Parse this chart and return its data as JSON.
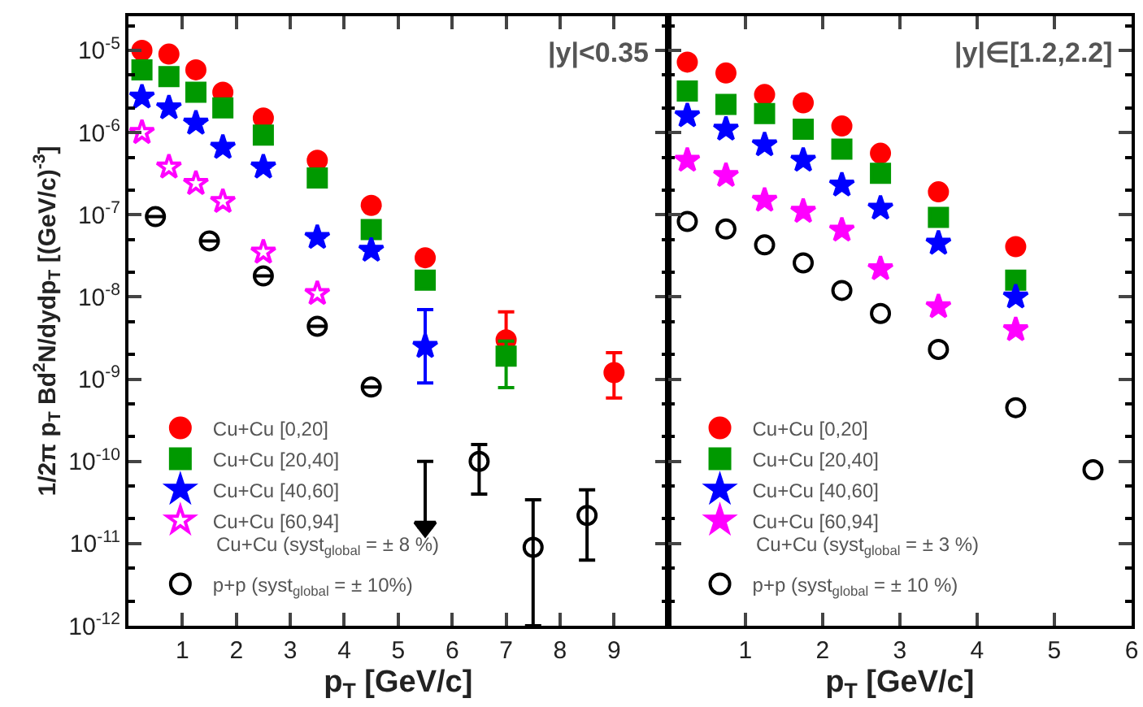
{
  "chart_data": [
    {
      "type": "scatter",
      "xlabel": "p$_{T}$ [GeV/c]",
      "ylabel": "1/2π p$_{T}$ Bd$^{2}$N/dydp$_{T}$ [(GeV/c)$^{-3}$]",
      "annotations": [
        "|y|<0.35",
        "Cu+Cu (syst$_{global}$ = ± 8 %)"
      ],
      "xlim": [
        0,
        10
      ],
      "xticks": [
        1,
        2,
        3,
        4,
        5,
        6,
        7,
        8,
        9
      ],
      "ylim": [
        1e-12,
        2.6e-05
      ],
      "log": true,
      "legend": "bottom left",
      "yticks": [
        {
          "value": 1e-12,
          "label": "10$^{-12}$"
        },
        {
          "value": 1e-11,
          "label": "10$^{-11}$"
        },
        {
          "value": 1e-10,
          "label": "10$^{-10}$"
        },
        {
          "value": 1e-09,
          "label": "10$^{-9}$"
        },
        {
          "value": 1e-08,
          "label": "10$^{-8}$"
        },
        {
          "value": 1e-07,
          "label": "10$^{-7}$"
        },
        {
          "value": 1e-06,
          "label": "10$^{-6}$"
        },
        {
          "value": 1e-05,
          "label": "10$^{-5}$"
        }
      ],
      "series": [
        {
          "name": "Cu+Cu [0,20]",
          "color": "#ff0000",
          "marker": "circle",
          "x": [
            0.25,
            0.75,
            1.25,
            1.75,
            2.5,
            3.5,
            4.5,
            5.5,
            7,
            9
          ],
          "values": [
            1e-05,
            9e-06,
            5.8e-06,
            3.1e-06,
            1.5e-06,
            4.6e-07,
            1.3e-07,
            3e-08,
            3e-09,
            1.2e-09
          ],
          "errors": [
            null,
            null,
            null,
            null,
            null,
            null,
            null,
            null,
            [
              1.5e-09,
              6.6e-09
            ],
            [
              5.9e-10,
              2.1e-09
            ]
          ]
        },
        {
          "name": "Cu+Cu [20,40]",
          "color": "#009900",
          "marker": "square",
          "x": [
            0.25,
            0.75,
            1.25,
            1.75,
            2.5,
            3.5,
            4.5,
            5.5,
            7
          ],
          "values": [
            5.8e-06,
            4.8e-06,
            3.1e-06,
            2e-06,
            9.3e-07,
            2.8e-07,
            6.6e-08,
            1.6e-08,
            1.9e-09
          ],
          "errors": [
            null,
            null,
            null,
            null,
            null,
            null,
            null,
            null,
            [
              7.9e-10,
              2.9e-09
            ]
          ]
        },
        {
          "name": "Cu+Cu [40,60]",
          "color": "#0000ff",
          "marker": "star",
          "x": [
            0.25,
            0.75,
            1.25,
            1.75,
            2.5,
            3.5,
            4.5,
            5.5
          ],
          "values": [
            2.7e-06,
            2e-06,
            1.3e-06,
            6.6e-07,
            3.8e-07,
            5.3e-08,
            3.7e-08,
            2.5e-09
          ],
          "errors": [
            null,
            null,
            null,
            null,
            null,
            null,
            null,
            [
              9e-10,
              7e-09
            ]
          ]
        },
        {
          "name": "Cu+Cu [60,94]",
          "color": "#ff00ff",
          "marker": "star-open",
          "x": [
            0.25,
            0.75,
            1.25,
            1.75,
            2.5,
            3.5
          ],
          "values": [
            1e-06,
            3.8e-07,
            2.4e-07,
            1.45e-07,
            3.5e-08,
            1.1e-08
          ]
        },
        {
          "name": "p+p (syst$_{global}$ = ± 10%)",
          "color": "#000000",
          "marker": "circle-open",
          "x": [
            0.5,
            1.5,
            2.5,
            3.5,
            4.5,
            6.5,
            7.5,
            8.5
          ],
          "values": [
            9.5e-08,
            4.8e-08,
            1.8e-08,
            4.4e-09,
            8e-10,
            1e-10,
            9e-12,
            2.2e-11
          ],
          "errors": [
            null,
            null,
            null,
            null,
            null,
            [
              4e-11,
              1.6e-10
            ],
            [
              1e-12,
              3.4e-11
            ],
            [
              6.3e-12,
              4.5e-11
            ]
          ]
        },
        {
          "color": "#000000",
          "marker": "triangle-down",
          "x": [
            5.5
          ],
          "values": [
            1.6e-11
          ],
          "errors": [
            [
              1.6e-11,
              1e-10
            ]
          ]
        }
      ]
    },
    {
      "type": "scatter",
      "xlabel": "p$_{T}$ [GeV/c]",
      "annotations": [
        "|y|∈[1.2,2.2]",
        "Cu+Cu (syst$_{global}$ = ± 3 %)"
      ],
      "xlim": [
        0,
        6
      ],
      "xticks": [
        1,
        2,
        3,
        4,
        5,
        6
      ],
      "ylim": [
        1e-12,
        2.6e-05
      ],
      "log": true,
      "legend": "bottom left",
      "tick_labels": "x",
      "yticks": [
        {
          "value": 1e-12,
          "label": "10$^{-12}$"
        },
        {
          "value": 1e-11,
          "label": "10$^{-11}$"
        },
        {
          "value": 1e-10,
          "label": "10$^{-10}$"
        },
        {
          "value": 1e-09,
          "label": "10$^{-9}$"
        },
        {
          "value": 1e-08,
          "label": "10$^{-8}$"
        },
        {
          "value": 1e-07,
          "label": "10$^{-7}$"
        },
        {
          "value": 1e-06,
          "label": "10$^{-6}$"
        },
        {
          "value": 1e-05,
          "label": "10$^{-5}$"
        }
      ],
      "series": [
        {
          "name": "Cu+Cu [0,20]",
          "color": "#ff0000",
          "marker": "circle",
          "x": [
            0.25,
            0.75,
            1.25,
            1.75,
            2.25,
            2.75,
            3.5,
            4.5
          ],
          "values": [
            7.2e-06,
            5.3e-06,
            2.9e-06,
            2.3e-06,
            1.2e-06,
            5.6e-07,
            1.9e-07,
            4.1e-08
          ]
        },
        {
          "name": "Cu+Cu [20,40]",
          "color": "#009900",
          "marker": "square",
          "x": [
            0.25,
            0.75,
            1.25,
            1.75,
            2.25,
            2.75,
            3.5,
            4.5
          ],
          "values": [
            3.2e-06,
            2.2e-06,
            1.7e-06,
            1.1e-06,
            6.3e-07,
            3.2e-07,
            9.3e-08,
            1.6e-08
          ]
        },
        {
          "name": "Cu+Cu [40,60]",
          "color": "#0000ff",
          "marker": "star",
          "x": [
            0.25,
            0.75,
            1.25,
            1.75,
            2.25,
            2.75,
            3.5,
            4.5
          ],
          "values": [
            1.6e-06,
            1.1e-06,
            7.1e-07,
            4.6e-07,
            2.3e-07,
            1.2e-07,
            4.5e-08,
            1e-08
          ]
        },
        {
          "name": "Cu+Cu [60,94]",
          "color": "#ff00ff",
          "marker": "star",
          "x": [
            0.25,
            0.75,
            1.25,
            1.75,
            2.25,
            2.75,
            3.5,
            4.5
          ],
          "values": [
            4.6e-07,
            3e-07,
            1.5e-07,
            1.1e-07,
            6.5e-08,
            2.2e-08,
            7.6e-09,
            4e-09
          ]
        },
        {
          "name": "p+p (syst$_{global}$ = ± 10 %)",
          "color": "#000000",
          "marker": "circle-open",
          "x": [
            0.25,
            0.75,
            1.25,
            1.75,
            2.25,
            2.75,
            3.5,
            4.5,
            5.5
          ],
          "values": [
            8.3e-08,
            6.7e-08,
            4.3e-08,
            2.6e-08,
            1.2e-08,
            6.3e-09,
            2.3e-09,
            4.5e-10,
            7.9e-11
          ]
        }
      ]
    }
  ]
}
